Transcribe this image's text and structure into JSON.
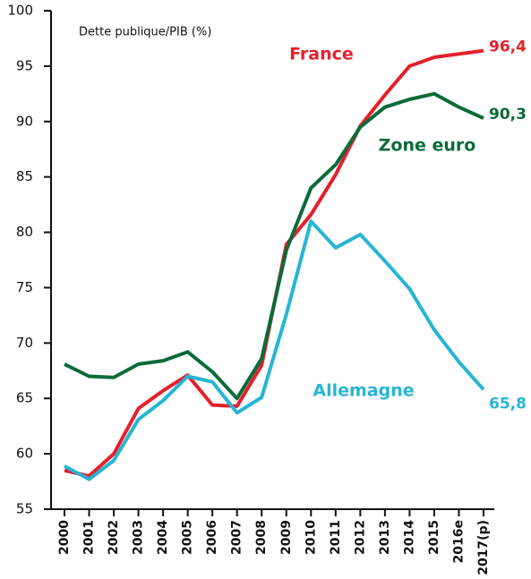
{
  "chart_data": {
    "type": "line",
    "y_label": "Dette publique/PIB (%)",
    "categories": [
      "2000",
      "2001",
      "2002",
      "2003",
      "2004",
      "2005",
      "2006",
      "2007",
      "2008",
      "2009",
      "2010",
      "2011",
      "2012",
      "2013",
      "2014",
      "2015",
      "2016e",
      "2017(p)"
    ],
    "series": [
      {
        "name": "France",
        "color": "#e4202c",
        "values": [
          58.5,
          58.0,
          60.0,
          64.1,
          65.7,
          67.1,
          64.4,
          64.3,
          68.0,
          78.9,
          81.6,
          85.2,
          89.6,
          92.4,
          95.0,
          95.8,
          96.1,
          96.4
        ],
        "value_labels": [
          null,
          null,
          null,
          null,
          null,
          null,
          null,
          null,
          null,
          null,
          null,
          null,
          null,
          null,
          null,
          null,
          null,
          "96,4"
        ]
      },
      {
        "name": "Zone euro",
        "color": "#0b6b3a",
        "values": [
          68.1,
          67.0,
          66.9,
          68.1,
          68.4,
          69.2,
          67.4,
          65.0,
          68.6,
          78.4,
          84.0,
          86.1,
          89.5,
          91.3,
          92.0,
          92.5,
          91.3,
          90.3
        ],
        "value_labels": [
          null,
          null,
          null,
          null,
          null,
          null,
          null,
          null,
          null,
          null,
          null,
          null,
          null,
          null,
          null,
          null,
          null,
          "90,3"
        ]
      },
      {
        "name": "Allemagne",
        "color": "#27b5d4",
        "values": [
          58.9,
          57.7,
          59.4,
          63.1,
          64.8,
          67.0,
          66.5,
          63.7,
          65.1,
          72.6,
          81.0,
          78.6,
          79.8,
          77.4,
          74.9,
          71.2,
          68.3,
          65.8
        ],
        "value_labels": [
          null,
          null,
          null,
          null,
          null,
          null,
          null,
          null,
          null,
          null,
          null,
          null,
          null,
          null,
          null,
          null,
          null,
          "65,8"
        ]
      }
    ],
    "ylim": [
      55,
      100
    ],
    "yticks": [
      55,
      60,
      65,
      70,
      75,
      80,
      85,
      90,
      95,
      100
    ],
    "grid": false
  }
}
